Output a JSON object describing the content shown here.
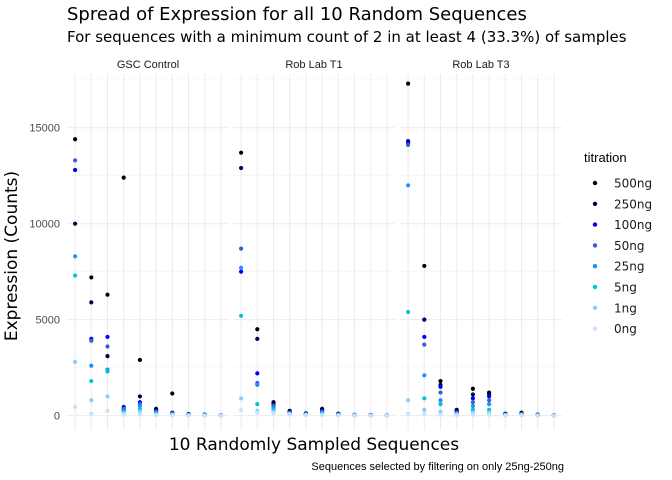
{
  "title": "Spread of Expression for all 10 Random Sequences",
  "subtitle": "For sequences with a minimum count of 2 in at least 4 (33.3%) of samples",
  "xlabel": "10 Randomly Sampled Sequences",
  "ylabel": "Expression (Counts)",
  "caption": "Sequences selected by filtering on only 25ng-250ng",
  "legend": {
    "title": "titration",
    "items": [
      {
        "label": "500ng",
        "color": "#000000"
      },
      {
        "label": "250ng",
        "color": "#00004d"
      },
      {
        "label": "100ng",
        "color": "#0000ff"
      },
      {
        "label": "50ng",
        "color": "#3a5fcd"
      },
      {
        "label": "25ng",
        "color": "#1e8fff"
      },
      {
        "label": "5ng",
        "color": "#00c5cd"
      },
      {
        "label": "1ng",
        "color": "#87cefa"
      },
      {
        "label": "0ng",
        "color": "#c6e2ff"
      }
    ]
  },
  "chart_data": {
    "type": "scatter",
    "facets": [
      "GSC Control",
      "Rob Lab T1",
      "Rob Lab T3"
    ],
    "y_ticks": [
      0,
      5000,
      10000,
      15000
    ],
    "y_tick_labels": [
      "0",
      "5000",
      "10000",
      "15000"
    ],
    "ylim": [
      -750,
      17800
    ],
    "x_positions": 10,
    "grid": true,
    "legend_position": "right",
    "series_order": [
      "500ng",
      "250ng",
      "100ng",
      "50ng",
      "25ng",
      "5ng",
      "1ng",
      "0ng"
    ],
    "panels": [
      {
        "facet": "GSC Control",
        "sequences": [
          [
            14400,
            10000,
            12800,
            13300,
            8300,
            7300,
            2800,
            450
          ],
          [
            7200,
            5900,
            4000,
            3900,
            2600,
            1800,
            800,
            100
          ],
          [
            6300,
            3100,
            4100,
            3600,
            2400,
            2300,
            1000,
            250
          ],
          [
            12400,
            300,
            450,
            350,
            250,
            200,
            120,
            50
          ],
          [
            2900,
            1000,
            700,
            600,
            500,
            350,
            200,
            60
          ],
          [
            350,
            300,
            250,
            200,
            150,
            100,
            60,
            30
          ],
          [
            1150,
            150,
            120,
            100,
            80,
            60,
            40,
            20
          ],
          [
            80,
            60,
            50,
            40,
            30,
            20,
            15,
            10
          ],
          [
            50,
            40,
            30,
            25,
            20,
            15,
            10,
            5
          ],
          [
            20,
            15,
            12,
            10,
            8,
            6,
            4,
            2
          ]
        ]
      },
      {
        "facet": "Rob Lab T1",
        "sequences": [
          [
            13700,
            12900,
            7500,
            8700,
            7700,
            5200,
            900,
            300
          ],
          [
            4500,
            4000,
            2200,
            1700,
            1600,
            600,
            250,
            150
          ],
          [
            700,
            600,
            550,
            500,
            400,
            300,
            200,
            120
          ],
          [
            250,
            200,
            180,
            150,
            120,
            100,
            80,
            60
          ],
          [
            120,
            100,
            80,
            70,
            60,
            50,
            40,
            30
          ],
          [
            350,
            300,
            250,
            200,
            150,
            100,
            60,
            30
          ],
          [
            100,
            80,
            60,
            50,
            40,
            30,
            20,
            10
          ],
          [
            40,
            30,
            25,
            20,
            15,
            10,
            8,
            5
          ],
          [
            30,
            25,
            20,
            15,
            10,
            8,
            5,
            3
          ],
          [
            15,
            12,
            10,
            8,
            6,
            4,
            3,
            2
          ]
        ]
      },
      {
        "facet": "Rob Lab T3",
        "sequences": [
          [
            17300,
            14300,
            14200,
            14100,
            12000,
            5400,
            800,
            100
          ],
          [
            7800,
            5000,
            4100,
            3700,
            2100,
            900,
            300,
            80
          ],
          [
            1800,
            1600,
            1500,
            1200,
            800,
            600,
            200,
            50
          ],
          [
            300,
            250,
            200,
            150,
            100,
            80,
            50,
            20
          ],
          [
            1400,
            1100,
            900,
            700,
            500,
            300,
            150,
            50
          ],
          [
            1200,
            1100,
            1000,
            800,
            600,
            300,
            150,
            50
          ],
          [
            100,
            80,
            60,
            50,
            40,
            30,
            20,
            10
          ],
          [
            150,
            120,
            100,
            80,
            60,
            40,
            20,
            10
          ],
          [
            50,
            40,
            30,
            25,
            20,
            15,
            10,
            5
          ],
          [
            20,
            15,
            12,
            10,
            8,
            6,
            4,
            2
          ]
        ]
      }
    ]
  }
}
